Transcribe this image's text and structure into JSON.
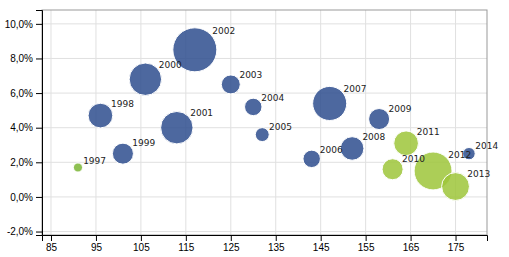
{
  "chart_data": {
    "type": "bubble",
    "labels": [
      "1997",
      "1998",
      "1999",
      "2000",
      "2001",
      "2002",
      "2003",
      "2004",
      "2005",
      "2006",
      "2007",
      "2008",
      "2009",
      "2010",
      "2011",
      "2012",
      "2013",
      "2014"
    ],
    "x": [
      91,
      96,
      101,
      106,
      113,
      117,
      125,
      130,
      132,
      143,
      147,
      152,
      158,
      161,
      164,
      170,
      175,
      178
    ],
    "values": [
      1.7,
      4.7,
      2.5,
      6.8,
      4.0,
      8.5,
      6.5,
      5.2,
      3.6,
      2.2,
      5.4,
      2.8,
      4.5,
      1.6,
      3.1,
      1.5,
      0.6,
      2.5
    ],
    "sizes": [
      30,
      220,
      160,
      380,
      380,
      700,
      130,
      110,
      70,
      110,
      420,
      200,
      160,
      160,
      220,
      520,
      280,
      55
    ],
    "colors": [
      "#7ab534",
      "#2e4d8e",
      "#2e4d8e",
      "#2e4d8e",
      "#2e4d8e",
      "#2e4d8e",
      "#2e4d8e",
      "#2e4d8e",
      "#2e4d8e",
      "#2e4d8e",
      "#2e4d8e",
      "#2e4d8e",
      "#2e4d8e",
      "#9dc53a",
      "#9dc53a",
      "#9dc53a",
      "#9dc53a",
      "#2e4d8e"
    ],
    "xlim": [
      83,
      182
    ],
    "ylim": [
      -2.2,
      10.8
    ],
    "xticks": [
      85,
      95,
      105,
      115,
      125,
      135,
      145,
      155,
      165,
      175
    ],
    "yticks": [
      {
        "value": -2.0,
        "label": "-2,0%"
      },
      {
        "value": 0.0,
        "label": "0,0%"
      },
      {
        "value": 2.0,
        "label": "2,0%"
      },
      {
        "value": 4.0,
        "label": "4,0%"
      },
      {
        "value": 6.0,
        "label": "6,0%"
      },
      {
        "value": 8.0,
        "label": "8,0%"
      },
      {
        "value": 10.0,
        "label": "10,0%"
      }
    ],
    "grid": true
  }
}
